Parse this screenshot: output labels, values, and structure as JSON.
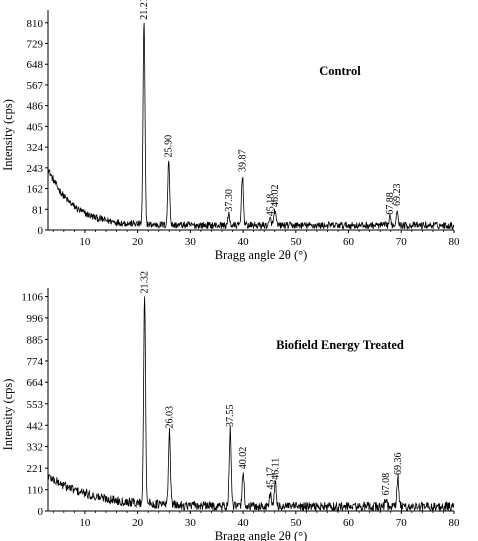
{
  "chart_data": [
    {
      "type": "line",
      "title": "Control",
      "xlabel": "Bragg angle 2θ (°)",
      "ylabel": "Intensity (cps)",
      "xlim": [
        3,
        80
      ],
      "ylim": [
        0,
        860
      ],
      "x_ticks": [
        10,
        20,
        30,
        40,
        50,
        60,
        70,
        80
      ],
      "y_ticks": [
        0,
        81,
        162,
        243,
        324,
        405,
        486,
        567,
        648,
        729,
        810
      ],
      "baseline": {
        "start": 240,
        "decay": 0.22,
        "floor": 18,
        "noise": 14
      },
      "peaks": [
        {
          "x": 21.21,
          "y": 810,
          "label": "21.21"
        },
        {
          "x": 25.9,
          "y": 272,
          "label": "25.90"
        },
        {
          "x": 37.3,
          "y": 60,
          "label": "37.30"
        },
        {
          "x": 39.87,
          "y": 215,
          "label": "39.87"
        },
        {
          "x": 45.18,
          "y": 42,
          "label": "45.18"
        },
        {
          "x": 46.02,
          "y": 78,
          "label": "46.02"
        },
        {
          "x": 67.88,
          "y": 48,
          "label": "67.88"
        },
        {
          "x": 69.23,
          "y": 82,
          "label": "69.23"
        }
      ]
    },
    {
      "type": "line",
      "title": "Biofield Energy Treated",
      "xlabel": "Bragg angle 2θ (°)",
      "ylabel": "Intensity (cps)",
      "xlim": [
        3,
        80
      ],
      "ylim": [
        0,
        1150
      ],
      "x_ticks": [
        10,
        20,
        30,
        40,
        50,
        60,
        70,
        80
      ],
      "y_ticks": [
        0,
        110,
        221,
        332,
        442,
        553,
        664,
        774,
        885,
        996,
        1106
      ],
      "baseline": {
        "start": 180,
        "decay": 0.12,
        "floor": 22,
        "noise": 24
      },
      "peaks": [
        {
          "x": 21.32,
          "y": 1106,
          "label": "21.32"
        },
        {
          "x": 26.03,
          "y": 410,
          "label": "26.03"
        },
        {
          "x": 37.55,
          "y": 418,
          "label": "37.55"
        },
        {
          "x": 40.02,
          "y": 200,
          "label": "40.02"
        },
        {
          "x": 45.17,
          "y": 95,
          "label": "45.17"
        },
        {
          "x": 46.11,
          "y": 145,
          "label": "46.11"
        },
        {
          "x": 67.08,
          "y": 65,
          "label": "67.08"
        },
        {
          "x": 69.36,
          "y": 170,
          "label": "69.36"
        }
      ]
    }
  ]
}
